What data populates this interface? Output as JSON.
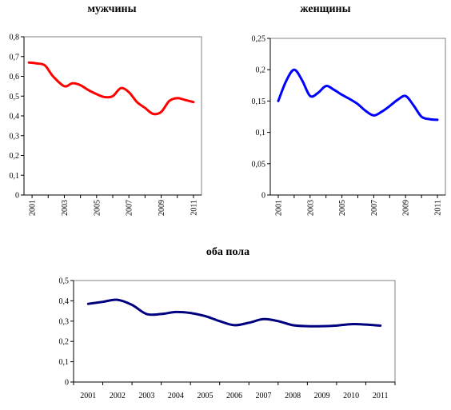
{
  "chart_data": [
    {
      "type": "line",
      "title": "мужчины",
      "xlabel": "",
      "ylabel": "",
      "ylim": [
        0,
        0.8
      ],
      "yticks": [
        "0",
        "0,1",
        "0,2",
        "0,3",
        "0,4",
        "0,5",
        "0,6",
        "0,7",
        "0,8"
      ],
      "xlim": [
        2000.5,
        2011.5
      ],
      "xticks": [
        "2001",
        "2003",
        "2005",
        "2007",
        "2009",
        "2011"
      ],
      "x": [
        2000.8,
        2001.3,
        2001.8,
        2002.3,
        2003.0,
        2003.5,
        2004.0,
        2004.5,
        2005.0,
        2005.5,
        2006.0,
        2006.5,
        2007.0,
        2007.5,
        2008.0,
        2008.5,
        2009.0,
        2009.5,
        2010.0,
        2010.5,
        2011.0
      ],
      "series": [
        {
          "color": "#ff0000",
          "values": [
            0.67,
            0.665,
            0.655,
            0.6,
            0.55,
            0.565,
            0.555,
            0.53,
            0.51,
            0.495,
            0.5,
            0.54,
            0.52,
            0.47,
            0.44,
            0.41,
            0.42,
            0.475,
            0.49,
            0.48,
            0.47
          ]
        }
      ],
      "grid": false
    },
    {
      "type": "line",
      "title": "женщины",
      "xlabel": "",
      "ylabel": "",
      "ylim": [
        0,
        0.25
      ],
      "yticks": [
        "0",
        "0,05",
        "0,1",
        "0,15",
        "0,2",
        "0,25"
      ],
      "xlim": [
        2000.5,
        2011.5
      ],
      "xticks": [
        "2001",
        "2003",
        "2005",
        "2007",
        "2009",
        "2011"
      ],
      "x": [
        2001.0,
        2001.5,
        2002.0,
        2002.5,
        2003.0,
        2003.5,
        2004.0,
        2004.5,
        2005.0,
        2005.5,
        2006.0,
        2006.5,
        2007.0,
        2007.5,
        2008.0,
        2008.5,
        2009.0,
        2009.5,
        2010.0,
        2010.5,
        2011.0
      ],
      "series": [
        {
          "color": "#0000ff",
          "values": [
            0.15,
            0.182,
            0.2,
            0.183,
            0.158,
            0.163,
            0.174,
            0.168,
            0.16,
            0.153,
            0.145,
            0.134,
            0.127,
            0.133,
            0.142,
            0.152,
            0.158,
            0.143,
            0.125,
            0.121,
            0.12
          ]
        }
      ],
      "grid": false
    },
    {
      "type": "line",
      "title": "оба пола",
      "xlabel": "",
      "ylabel": "",
      "ylim": [
        0,
        0.5
      ],
      "yticks": [
        "0",
        "0,1",
        "0,2",
        "0,3",
        "0,4",
        "0,5"
      ],
      "categories": [
        "2001",
        "2002",
        "2003",
        "2004",
        "2005",
        "2006",
        "2007",
        "2008",
        "2009",
        "2010",
        "2011"
      ],
      "x": [
        0,
        0.5,
        1,
        1.5,
        2,
        2.5,
        3,
        3.5,
        4,
        4.5,
        5,
        5.5,
        6,
        6.5,
        7,
        7.5,
        8,
        8.5,
        9,
        9.5,
        10
      ],
      "series": [
        {
          "color": "#000080",
          "values": [
            0.385,
            0.395,
            0.405,
            0.38,
            0.335,
            0.335,
            0.345,
            0.34,
            0.325,
            0.3,
            0.28,
            0.292,
            0.31,
            0.3,
            0.28,
            0.275,
            0.275,
            0.278,
            0.285,
            0.283,
            0.278
          ]
        }
      ],
      "grid": false
    }
  ]
}
